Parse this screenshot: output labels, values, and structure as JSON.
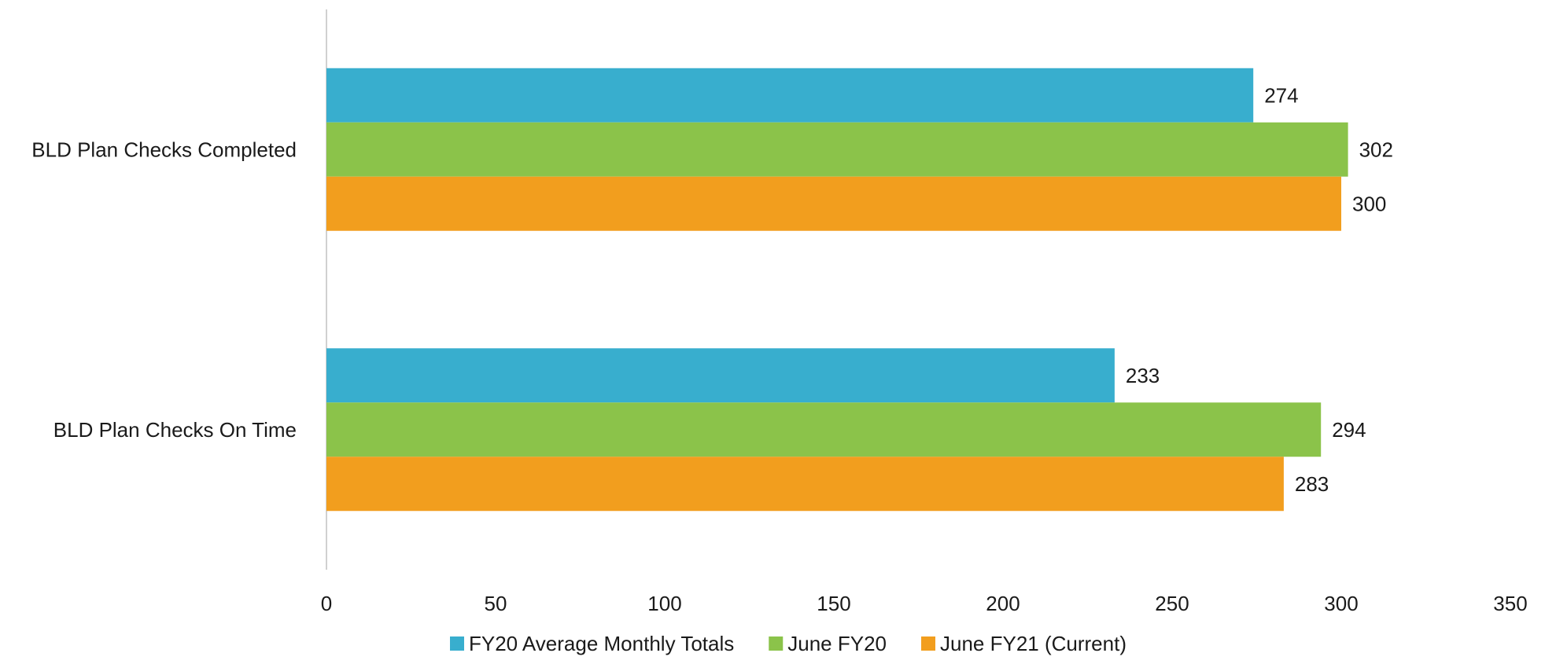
{
  "chart_data": {
    "type": "bar",
    "orientation": "horizontal",
    "title": "",
    "xlabel": "",
    "ylabel": "",
    "categories": [
      "BLD Plan Checks Completed",
      "BLD Plan Checks On Time"
    ],
    "series": [
      {
        "name": "FY20 Average Monthly Totals",
        "color": "#38AECE",
        "values": [
          274,
          233
        ]
      },
      {
        "name": "June FY20",
        "color": "#8BC34A",
        "values": [
          302,
          294
        ]
      },
      {
        "name": "June FY21 (Current)",
        "color": "#F29E1E",
        "values": [
          300,
          283
        ]
      }
    ],
    "xlim": [
      0,
      350
    ],
    "xticks": [
      0,
      50,
      100,
      150,
      200,
      250,
      300,
      350
    ],
    "xtick_labels": [
      "0",
      "50",
      "100",
      "150",
      "200",
      "250",
      "300",
      "350"
    ],
    "data_labels": [
      [
        "274",
        "233"
      ],
      [
        "302",
        "294"
      ],
      [
        "300",
        "283"
      ]
    ],
    "grid": false,
    "legend_position": "bottom"
  }
}
